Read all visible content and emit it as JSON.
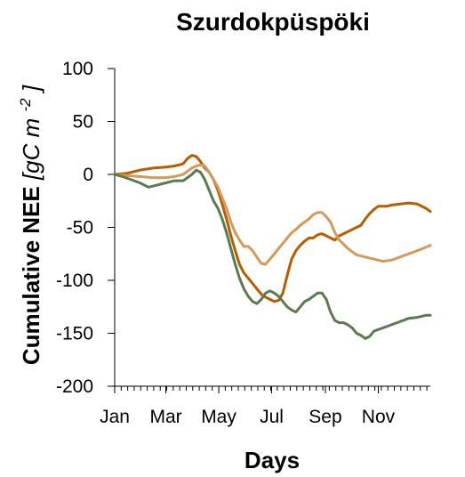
{
  "chart_data": {
    "type": "line",
    "title": "Szurdokpüspöki",
    "xlabel": "Days",
    "ylabel": {
      "main": "Cumulative NEE",
      "units_prefix": "[gC m",
      "units_exp": "-2",
      "units_suffix": "]"
    },
    "ylim": [
      -200,
      100
    ],
    "yticks": [
      100,
      50,
      0,
      -50,
      -100,
      -150,
      -200
    ],
    "xlim": [
      1,
      365
    ],
    "xticks": [
      {
        "day": 1,
        "label": "Jan"
      },
      {
        "day": 60,
        "label": "Mar"
      },
      {
        "day": 121,
        "label": "May"
      },
      {
        "day": 182,
        "label": "Jul"
      },
      {
        "day": 244,
        "label": "Sep"
      },
      {
        "day": 305,
        "label": "Nov"
      }
    ],
    "grid": false,
    "legend": "none",
    "series": [
      {
        "color": "#b85c00",
        "x": [
          1,
          15,
          30,
          45,
          60,
          70,
          80,
          85,
          90,
          95,
          100,
          105,
          110,
          115,
          120,
          125,
          130,
          135,
          140,
          145,
          150,
          155,
          160,
          165,
          170,
          175,
          180,
          185,
          190,
          195,
          200,
          205,
          210,
          215,
          220,
          225,
          230,
          235,
          240,
          245,
          250,
          255,
          260,
          265,
          270,
          275,
          280,
          285,
          290,
          295,
          300,
          305,
          310,
          315,
          320,
          330,
          340,
          350,
          360,
          365
        ],
        "y": [
          0,
          1,
          4,
          6,
          7,
          8,
          10,
          15,
          18,
          17,
          12,
          6,
          2,
          -5,
          -15,
          -28,
          -42,
          -58,
          -72,
          -85,
          -93,
          -98,
          -103,
          -108,
          -113,
          -116,
          -118,
          -120,
          -119,
          -112,
          -95,
          -80,
          -72,
          -67,
          -63,
          -60,
          -60,
          -57,
          -56,
          -58,
          -60,
          -62,
          -58,
          -56,
          -54,
          -52,
          -50,
          -48,
          -42,
          -37,
          -33,
          -30,
          -30,
          -30,
          -29,
          -28,
          -27,
          -28,
          -32,
          -35
        ]
      },
      {
        "color": "#d49a5a",
        "x": [
          1,
          15,
          30,
          45,
          60,
          70,
          80,
          85,
          90,
          95,
          100,
          105,
          110,
          115,
          120,
          125,
          130,
          135,
          140,
          145,
          150,
          155,
          160,
          165,
          170,
          175,
          180,
          185,
          190,
          195,
          200,
          205,
          210,
          215,
          220,
          225,
          230,
          235,
          240,
          245,
          250,
          255,
          260,
          265,
          270,
          275,
          280,
          290,
          300,
          310,
          320,
          330,
          340,
          350,
          365
        ],
        "y": [
          0,
          -1,
          -2,
          -3,
          -3,
          -2,
          0,
          3,
          6,
          8,
          9,
          8,
          2,
          -5,
          -12,
          -22,
          -32,
          -45,
          -55,
          -62,
          -68,
          -68,
          -72,
          -78,
          -84,
          -85,
          -80,
          -75,
          -70,
          -65,
          -60,
          -55,
          -52,
          -48,
          -45,
          -42,
          -38,
          -36,
          -36,
          -40,
          -45,
          -55,
          -62,
          -66,
          -70,
          -73,
          -76,
          -78,
          -80,
          -82,
          -81,
          -78,
          -75,
          -72,
          -67
        ]
      },
      {
        "color": "#5a7a50",
        "x": [
          1,
          10,
          20,
          30,
          40,
          50,
          60,
          70,
          80,
          90,
          95,
          100,
          105,
          110,
          115,
          120,
          125,
          130,
          135,
          140,
          145,
          150,
          155,
          160,
          165,
          170,
          175,
          180,
          185,
          190,
          195,
          200,
          205,
          210,
          215,
          220,
          225,
          230,
          235,
          240,
          245,
          250,
          255,
          260,
          265,
          270,
          275,
          280,
          285,
          290,
          295,
          300,
          310,
          320,
          330,
          340,
          350,
          360,
          365
        ],
        "y": [
          0,
          -2,
          -5,
          -8,
          -12,
          -10,
          -8,
          -6,
          -6,
          0,
          4,
          2,
          -5,
          -15,
          -25,
          -32,
          -42,
          -55,
          -70,
          -85,
          -98,
          -108,
          -115,
          -120,
          -122,
          -118,
          -112,
          -110,
          -112,
          -115,
          -120,
          -125,
          -128,
          -130,
          -125,
          -120,
          -118,
          -115,
          -112,
          -112,
          -118,
          -130,
          -138,
          -140,
          -140,
          -142,
          -145,
          -150,
          -152,
          -155,
          -153,
          -148,
          -145,
          -142,
          -139,
          -136,
          -135,
          -133,
          -133
        ]
      }
    ]
  }
}
